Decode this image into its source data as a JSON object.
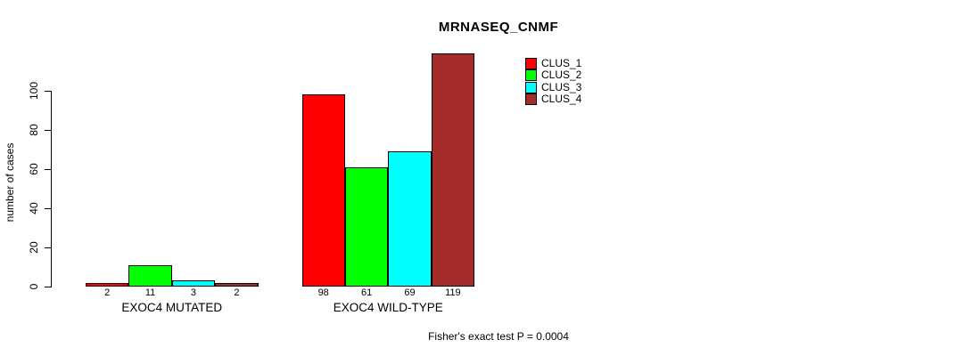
{
  "chart_data": {
    "type": "bar",
    "title": "MRNASEQ_CNMF",
    "ylabel": "number of cases",
    "xlabel": "",
    "caption": "Fisher's exact test P = 0.0004",
    "categories": [
      "EXOC4 MUTATED",
      "EXOC4 WILD-TYPE"
    ],
    "series": [
      {
        "name": "CLUS_1",
        "color": "#FF0000",
        "values": [
          2,
          98
        ]
      },
      {
        "name": "CLUS_2",
        "color": "#00FF00",
        "values": [
          11,
          61
        ]
      },
      {
        "name": "CLUS_3",
        "color": "#00FFFF",
        "values": [
          3,
          69
        ]
      },
      {
        "name": "CLUS_4",
        "color": "#A52A2A",
        "values": [
          2,
          119
        ]
      }
    ],
    "bar_value_labels": [
      [
        "2",
        "11",
        "3",
        "2"
      ],
      [
        "98",
        "61",
        "69",
        "119"
      ]
    ],
    "yticks": [
      0,
      20,
      40,
      60,
      80,
      100
    ],
    "ylim": [
      0,
      100
    ],
    "grid": false,
    "legend_position": "top-right",
    "legend_entries": [
      "CLUS_1",
      "CLUS_2",
      "CLUS_3",
      "CLUS_4"
    ]
  }
}
